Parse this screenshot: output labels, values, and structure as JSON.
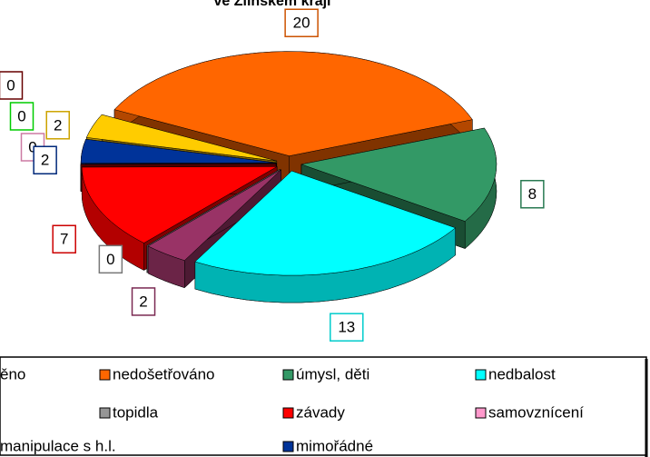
{
  "chart_data": {
    "type": "pie3d",
    "title": "ve Zlínském kraji",
    "categories": [
      "ěno",
      "nedošetřováno",
      "úmysl, děti",
      "nedbalost",
      null,
      "topidla",
      "závady",
      "samovznícení",
      "manipulace s h.l.",
      null,
      "mimořádné"
    ],
    "values": [
      2,
      20,
      8,
      13,
      2,
      0,
      7,
      0,
      0,
      0,
      2
    ],
    "colors": [
      "#ffcc00",
      "#ff6600",
      "#339966",
      "#00ffff",
      "#993366",
      "#969696",
      "#ff0000",
      "#ff99cc",
      "#00ff00",
      "#800000",
      "#003399"
    ]
  }
}
